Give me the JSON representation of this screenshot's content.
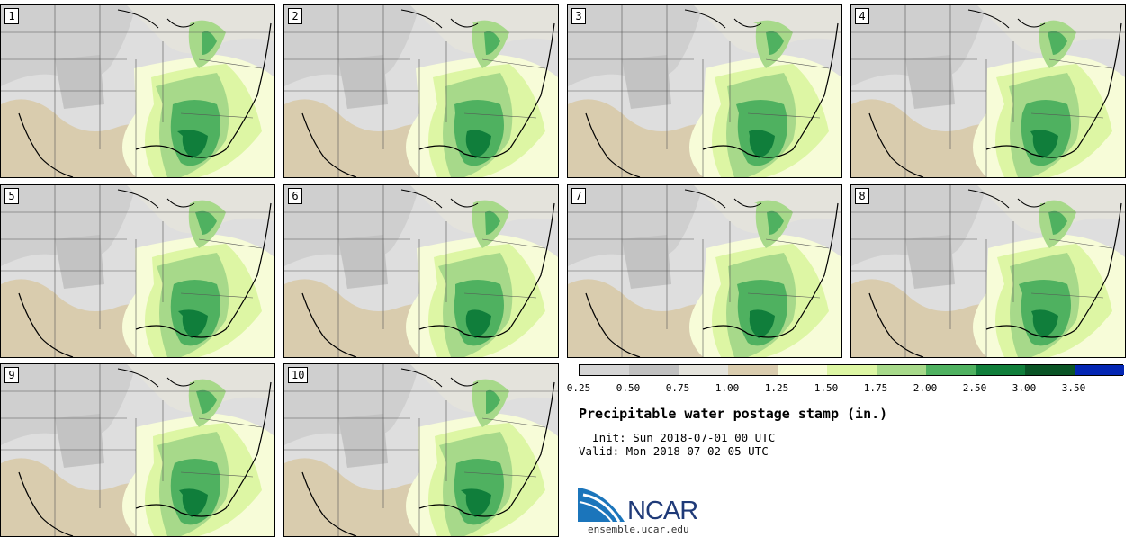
{
  "stamps": [
    {
      "label": "1"
    },
    {
      "label": "2"
    },
    {
      "label": "3"
    },
    {
      "label": "4"
    },
    {
      "label": "5"
    },
    {
      "label": "6"
    },
    {
      "label": "7"
    },
    {
      "label": "8"
    },
    {
      "label": "9"
    },
    {
      "label": "10"
    }
  ],
  "colorbar": {
    "ticks": [
      "0.25",
      "0.50",
      "0.75",
      "1.00",
      "1.25",
      "1.50",
      "1.75",
      "2.00",
      "2.50",
      "3.00",
      "3.50"
    ],
    "colors": [
      "#d4d4d4",
      "#c0c0c0",
      "#e4e3dc",
      "#d9ccae",
      "#f7fcd8",
      "#ddf6a4",
      "#a7d98a",
      "#4fb160",
      "#107e3b",
      "#0a5426",
      "#0326b3"
    ]
  },
  "title": "Precipitable water postage stamp (in.)",
  "init": "  Init: Sun 2018-07-01 00 UTC",
  "valid": "Valid: Mon 2018-07-02 05 UTC",
  "logo": {
    "name": "NCAR",
    "url": "ensemble.ucar.edu"
  }
}
